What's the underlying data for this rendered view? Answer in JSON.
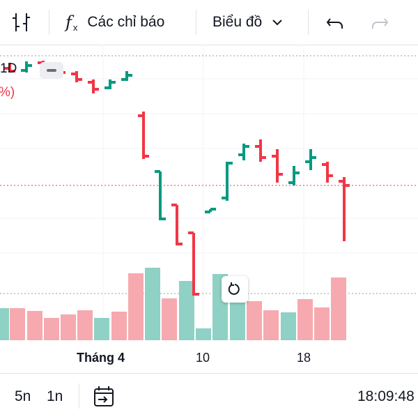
{
  "toolbar": {
    "indicators_label": "Các chỉ báo",
    "chart_type_label": "Biểu đồ"
  },
  "chart": {
    "symbol_interval": "1D",
    "change_fragment": "%)",
    "x_ticks": [
      "Tháng 4",
      "10",
      "18"
    ],
    "colors": {
      "up": "#089981",
      "down": "#f23645",
      "up_volume": "#8fd1c4",
      "down_volume": "#f7a9b0"
    }
  },
  "chart_data": {
    "type": "ohlc",
    "title": "",
    "x": [
      "Tháng 4",
      "10",
      "18"
    ],
    "note_ranges": "price scale not visible"
  },
  "bottom_bar": {
    "interval_5m": "5n",
    "interval_1m": "1n",
    "clock": "18:09:48"
  }
}
